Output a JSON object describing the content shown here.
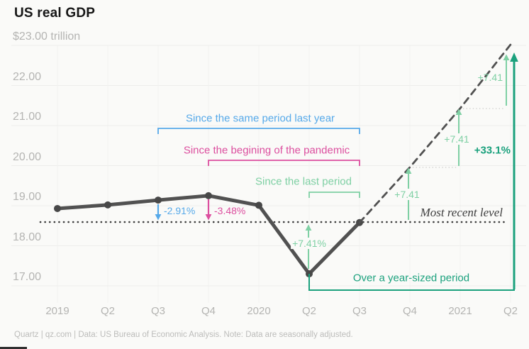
{
  "title": "US real GDP",
  "footer": "Quartz | qz.com | Data: US Bureau of Economic Analysis. Note: Data are seasonally adjusted.",
  "y_axis": [
    "$23.00 trillion",
    "22.00",
    "21.00",
    "20.00",
    "19.00",
    "18.00",
    "17.00"
  ],
  "x_axis": [
    "2019",
    "Q2",
    "Q3",
    "Q4",
    "2020",
    "Q2",
    "Q3",
    "Q4",
    "2021",
    "Q2"
  ],
  "annotations": {
    "same_period_label": "Since the same period last year",
    "pandemic_label": "Since the begining of the pandemic",
    "last_period_label": "Since the last period",
    "year_sized_label": "Over a year-sized period",
    "most_recent_label": "Most recent level",
    "pct_same_period": "-2.91%",
    "pct_pandemic": "-3.48%",
    "pct_last_period": "+7.41%",
    "step_increment_1": "+7.41",
    "step_increment_2": "+7.41",
    "step_increment_3": "+7.41",
    "pct_year_sized": "+33.1%"
  },
  "colors": {
    "blue": "#56a9e9",
    "pink": "#dc4f9f",
    "mint": "#7fd0a4",
    "teal": "#1ba17d",
    "line": "#515151",
    "dotted_reference": "#3c3c3c",
    "grid": "#ededeb",
    "axis_text": "#b4b4b2",
    "background": "#fafaf8"
  },
  "chart_data": {
    "type": "line",
    "title": "US real GDP",
    "unit": "$ trillion",
    "categories": [
      "2019",
      "Q2",
      "Q3",
      "Q4",
      "2020",
      "Q2",
      "Q3",
      "Q4",
      "2021",
      "Q2"
    ],
    "series": [
      {
        "name": "actual",
        "style": "solid",
        "values": [
          18.93,
          19.02,
          19.14,
          19.25,
          19.01,
          17.3,
          18.58,
          null,
          null,
          null
        ]
      },
      {
        "name": "projection",
        "style": "dashed",
        "values": [
          null,
          null,
          null,
          null,
          null,
          null,
          18.58,
          19.96,
          21.43,
          23.02
        ]
      }
    ],
    "most_recent_level": 18.58,
    "ylim": [
      17,
      23
    ],
    "ytick_step": 1,
    "grid": true,
    "legend": false,
    "annotations": {
      "change_since_same_period_last_year_pct": -2.91,
      "change_since_beginning_of_pandemic_pct": -3.48,
      "change_since_last_period_pct": 7.41,
      "projected_quarterly_growth_pct": 7.41,
      "projected_year_sized_growth_pct": 33.1
    }
  }
}
